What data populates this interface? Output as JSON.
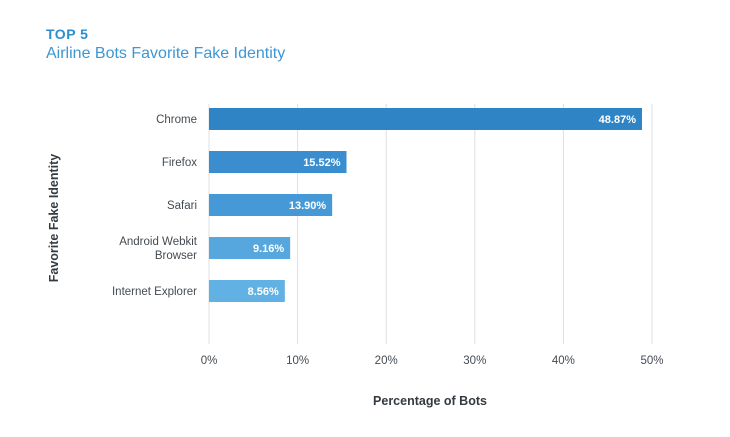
{
  "header": {
    "kicker": "TOP 5",
    "title": "Airline Bots Favorite Fake Identity"
  },
  "chart_data": {
    "type": "bar",
    "orientation": "horizontal",
    "categories": [
      "Chrome",
      "Firefox",
      "Safari",
      "Android Webkit Browser",
      "Internet Explorer"
    ],
    "category_lines": [
      [
        "Chrome"
      ],
      [
        "Firefox"
      ],
      [
        "Safari"
      ],
      [
        "Android Webkit",
        "Browser"
      ],
      [
        "Internet Explorer"
      ]
    ],
    "values": [
      48.87,
      15.52,
      13.9,
      9.16,
      8.56
    ],
    "value_labels": [
      "48.87%",
      "15.52%",
      "13.90%",
      "9.16%",
      "8.56%"
    ],
    "xlabel": "Percentage of Bots",
    "ylabel": "Favorite Fake Identity",
    "xlim": [
      0,
      50
    ],
    "xticks": [
      0,
      10,
      20,
      30,
      40,
      50
    ],
    "xtick_labels": [
      "0%",
      "10%",
      "20%",
      "30%",
      "40%",
      "50%"
    ],
    "grid": true,
    "colors": [
      "#2f84c6",
      "#3a8ecf",
      "#4599d6",
      "#55a7de",
      "#62b1e4"
    ]
  }
}
